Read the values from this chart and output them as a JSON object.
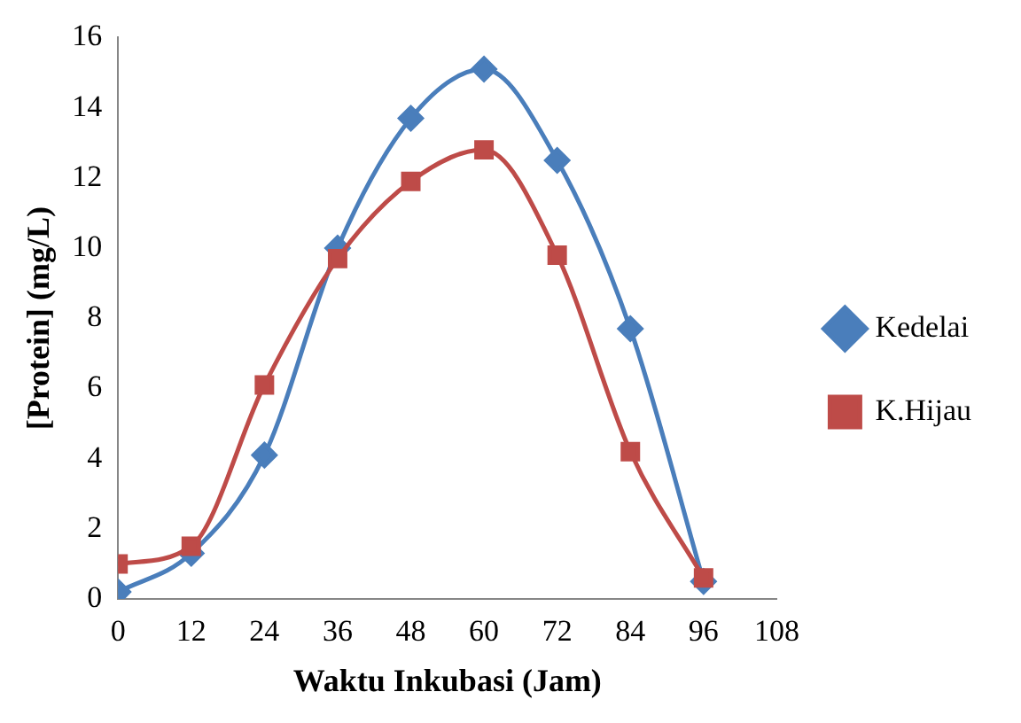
{
  "chart_data": {
    "type": "line",
    "xlabel": "Waktu Inkubasi (Jam)",
    "ylabel": "[Protein] (mg/L)",
    "x": [
      0,
      12,
      24,
      36,
      48,
      60,
      72,
      84,
      96
    ],
    "xlim": [
      0,
      108
    ],
    "xticks": [
      0,
      12,
      24,
      36,
      48,
      60,
      72,
      84,
      96,
      108
    ],
    "ylim": [
      0,
      16
    ],
    "yticks": [
      0,
      2,
      4,
      6,
      8,
      10,
      12,
      14,
      16
    ],
    "grid": false,
    "legend": "right",
    "series": [
      {
        "name": "Kedelai",
        "color": "#4a7ebb",
        "marker": "diamond",
        "values": [
          0.2,
          1.3,
          4.1,
          10.0,
          13.7,
          15.1,
          12.5,
          7.7,
          0.5
        ]
      },
      {
        "name": "K.Hijau",
        "color": "#be4b48",
        "marker": "square",
        "values": [
          1.0,
          1.5,
          6.1,
          9.7,
          11.9,
          12.8,
          9.8,
          4.2,
          0.6
        ]
      }
    ]
  }
}
